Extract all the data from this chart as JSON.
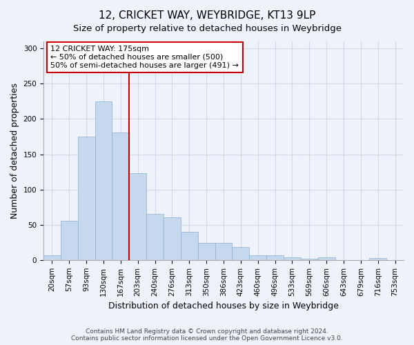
{
  "title": "12, CRICKET WAY, WEYBRIDGE, KT13 9LP",
  "subtitle": "Size of property relative to detached houses in Weybridge",
  "xlabel": "Distribution of detached houses by size in Weybridge",
  "ylabel": "Number of detached properties",
  "bar_labels": [
    "20sqm",
    "57sqm",
    "93sqm",
    "130sqm",
    "167sqm",
    "203sqm",
    "240sqm",
    "276sqm",
    "313sqm",
    "350sqm",
    "386sqm",
    "423sqm",
    "460sqm",
    "496sqm",
    "533sqm",
    "569sqm",
    "606sqm",
    "643sqm",
    "679sqm",
    "716sqm",
    "753sqm"
  ],
  "bar_values": [
    7,
    56,
    175,
    225,
    181,
    123,
    65,
    60,
    40,
    24,
    24,
    18,
    7,
    7,
    4,
    2,
    4,
    0,
    0,
    3,
    0
  ],
  "bar_color": "#c5d8ee",
  "bar_edge_color": "#8ab0d0",
  "vline_x_index": 4,
  "vline_color": "#cc0000",
  "annotation_title": "12 CRICKET WAY: 175sqm",
  "annotation_line1": "← 50% of detached houses are smaller (500)",
  "annotation_line2": "50% of semi-detached houses are larger (491) →",
  "annotation_box_color": "#ffffff",
  "annotation_box_edge": "#cc0000",
  "ylim": [
    0,
    310
  ],
  "yticks": [
    0,
    50,
    100,
    150,
    200,
    250,
    300
  ],
  "footnote1": "Contains HM Land Registry data © Crown copyright and database right 2024.",
  "footnote2": "Contains public sector information licensed under the Open Government Licence v3.0.",
  "bg_color": "#eef2fa",
  "grid_color": "#d0d8ee",
  "title_fontsize": 11,
  "subtitle_fontsize": 9.5,
  "axis_label_fontsize": 9,
  "tick_fontsize": 7.5,
  "footnote_fontsize": 6.5
}
